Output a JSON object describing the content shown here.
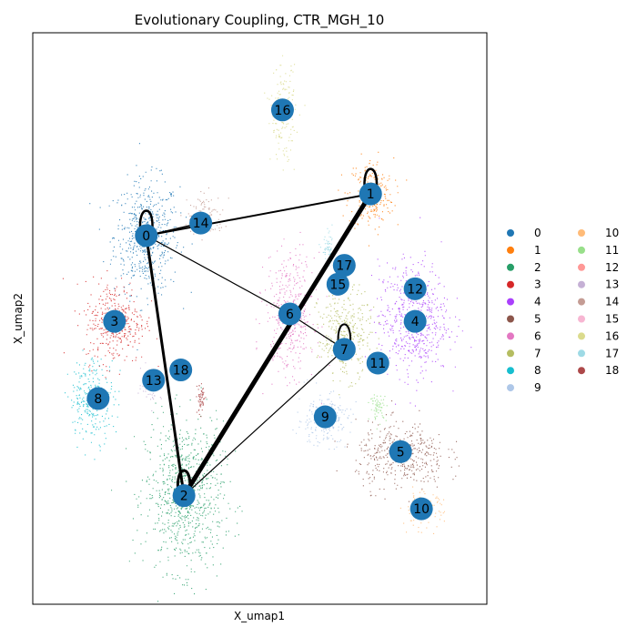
{
  "chart_data": {
    "type": "scatter",
    "title": "Evolutionary Coupling, CTR_MGH_10",
    "xlabel": "X_umap1",
    "ylabel": "X_umap2",
    "xlim": [
      0,
      100
    ],
    "ylim": [
      0,
      100
    ],
    "legend": {
      "placement": "right",
      "columns": 2
    },
    "clusters": [
      {
        "name": "0",
        "color": "#1f77b4",
        "x": 25.0,
        "y": 64.5,
        "rx": 8.0,
        "ry": 11.0
      },
      {
        "name": "1",
        "color": "#ff7f0e",
        "x": 74.4,
        "y": 71.8,
        "rx": 5.5,
        "ry": 7.0
      },
      {
        "name": "2",
        "color": "#279e68",
        "x": 33.3,
        "y": 19.0,
        "rx": 9.5,
        "ry": 14.5
      },
      {
        "name": "3",
        "color": "#d62728",
        "x": 18.0,
        "y": 49.5,
        "rx": 7.5,
        "ry": 8.0
      },
      {
        "name": "4",
        "color": "#aa40fc",
        "x": 83.8,
        "y": 50.0,
        "rx": 8.5,
        "ry": 11.0
      },
      {
        "name": "5",
        "color": "#8c564b",
        "x": 81.0,
        "y": 26.0,
        "rx": 11.0,
        "ry": 6.5
      },
      {
        "name": "6",
        "color": "#e377c2",
        "x": 56.6,
        "y": 50.8,
        "rx": 6.0,
        "ry": 11.5
      },
      {
        "name": "7",
        "color": "#b5bd61",
        "x": 68.6,
        "y": 47.5,
        "rx": 6.5,
        "ry": 8.5
      },
      {
        "name": "8",
        "color": "#17becf",
        "x": 13.0,
        "y": 36.0,
        "rx": 5.5,
        "ry": 8.0
      },
      {
        "name": "9",
        "color": "#aec7e8",
        "x": 64.0,
        "y": 32.5,
        "rx": 6.5,
        "ry": 5.0
      },
      {
        "name": "10",
        "color": "#ffbb78",
        "x": 85.8,
        "y": 16.5,
        "rx": 5.0,
        "ry": 3.5
      },
      {
        "name": "11",
        "color": "#98df8a",
        "x": 76.0,
        "y": 34.5,
        "rx": 2.0,
        "ry": 2.5
      },
      {
        "name": "12",
        "color": "#ff9896",
        "x": 84.0,
        "y": 55.0,
        "rx": 1.5,
        "ry": 1.5
      },
      {
        "name": "13",
        "color": "#c5b0d5",
        "x": 26.0,
        "y": 38.5,
        "rx": 2.5,
        "ry": 3.0
      },
      {
        "name": "14",
        "color": "#c49c94",
        "x": 38.0,
        "y": 68.0,
        "rx": 4.5,
        "ry": 4.0
      },
      {
        "name": "15",
        "color": "#f7b6d2",
        "x": 67.2,
        "y": 56.0,
        "rx": 1.5,
        "ry": 1.5
      },
      {
        "name": "16",
        "color": "#dbdb8d",
        "x": 55.0,
        "y": 86.0,
        "rx": 3.0,
        "ry": 9.0
      },
      {
        "name": "17",
        "color": "#9edae5",
        "x": 65.0,
        "y": 62.0,
        "rx": 1.5,
        "ry": 3.0
      },
      {
        "name": "18",
        "color": "#ad494a",
        "x": 37.0,
        "y": 36.0,
        "rx": 1.0,
        "ry": 3.0
      }
    ],
    "nodes": [
      {
        "name": "0",
        "x": 25.0,
        "y": 64.5
      },
      {
        "name": "1",
        "x": 74.4,
        "y": 71.8
      },
      {
        "name": "2",
        "x": 33.3,
        "y": 19.0
      },
      {
        "name": "3",
        "x": 18.0,
        "y": 49.5
      },
      {
        "name": "4",
        "x": 84.2,
        "y": 49.5
      },
      {
        "name": "5",
        "x": 81.0,
        "y": 26.7
      },
      {
        "name": "6",
        "x": 56.6,
        "y": 50.8
      },
      {
        "name": "7",
        "x": 68.6,
        "y": 44.6
      },
      {
        "name": "8",
        "x": 14.4,
        "y": 36.0
      },
      {
        "name": "9",
        "x": 64.4,
        "y": 32.8
      },
      {
        "name": "10",
        "x": 85.6,
        "y": 16.7
      },
      {
        "name": "11",
        "x": 76.0,
        "y": 42.2
      },
      {
        "name": "12",
        "x": 84.2,
        "y": 55.2
      },
      {
        "name": "13",
        "x": 26.6,
        "y": 39.2
      },
      {
        "name": "14",
        "x": 37.0,
        "y": 66.7
      },
      {
        "name": "15",
        "x": 67.2,
        "y": 56.0
      },
      {
        "name": "16",
        "x": 55.0,
        "y": 86.5
      },
      {
        "name": "17",
        "x": 68.6,
        "y": 59.3
      },
      {
        "name": "18",
        "x": 32.6,
        "y": 41.0
      }
    ],
    "edges": [
      {
        "source": "0",
        "target": "1",
        "width": 2.0
      },
      {
        "source": "0",
        "target": "14",
        "width": 1.5
      },
      {
        "source": "0",
        "target": "2",
        "width": 3.0
      },
      {
        "source": "0",
        "target": "6",
        "width": 1.2
      },
      {
        "source": "6",
        "target": "7",
        "width": 1.2
      },
      {
        "source": "1",
        "target": "2",
        "width": 5.0
      },
      {
        "source": "7",
        "target": "2",
        "width": 1.2
      }
    ],
    "self_loops": [
      {
        "node": "0",
        "width": 2.5
      },
      {
        "node": "1",
        "width": 2.5
      },
      {
        "node": "2",
        "width": 3.0
      },
      {
        "node": "7",
        "width": 2.0
      }
    ],
    "node_color": "#1f77b4"
  }
}
